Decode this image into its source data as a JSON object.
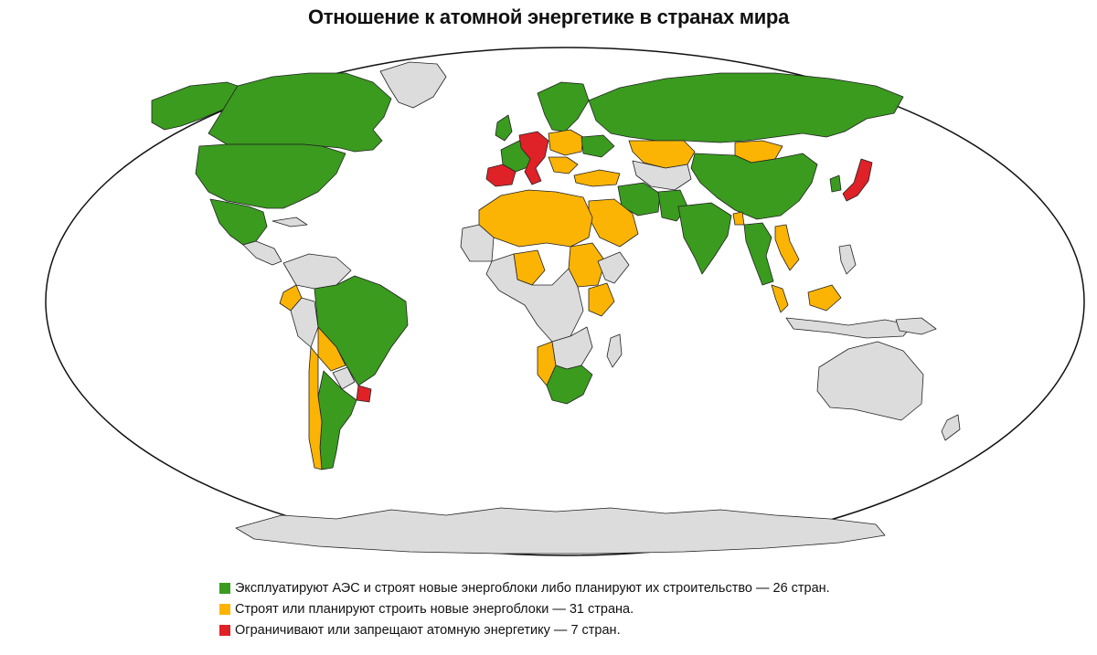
{
  "title": "Отношение к атомной энергетике в странах мира",
  "colors": {
    "operate_and_build": "#3a9b1f",
    "plan_new": "#fbb404",
    "restrict": "#df2128",
    "other": "#dcdcdc",
    "borders": "#222222",
    "ocean": "#ffffff"
  },
  "legend": [
    {
      "key": "operate_and_build",
      "color": "#3a9b1f",
      "label": "Эксплуатируют АЭС и строят новые энергоблоки либо планируют их строительство — 26 стран."
    },
    {
      "key": "plan_new",
      "color": "#fbb404",
      "label": "Строят или планируют строить новые энергоблоки — 31 страна."
    },
    {
      "key": "restrict",
      "color": "#df2128",
      "label": "Ограничивают или запрещают атомную энергетику — 7 стран."
    }
  ]
}
